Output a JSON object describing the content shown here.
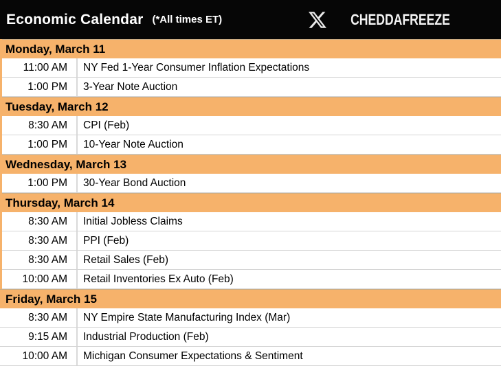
{
  "header": {
    "title": "Economic Calendar",
    "subtitle": "(*All times ET)",
    "brand": "CHEDDAFREEZE"
  },
  "icons": {
    "x_logo": "x-logo-icon"
  },
  "colors": {
    "accent_orange": "#f6b26b",
    "titlebar_black": "#060606",
    "row_border_gray": "#d9d9d9",
    "row_bg": "#ffffff",
    "text_black": "#000000",
    "title_text_white": "#ffffff"
  },
  "calendar": {
    "days": [
      {
        "label": "Monday, March 11",
        "events": [
          {
            "time": "11:00 AM",
            "event": "NY Fed 1-Year Consumer Inflation Expectations"
          },
          {
            "time": "1:00 PM",
            "event": "3-Year Note Auction"
          }
        ]
      },
      {
        "label": "Tuesday, March 12",
        "events": [
          {
            "time": "8:30 AM",
            "event": "CPI (Feb)"
          },
          {
            "time": "1:00 PM",
            "event": "10-Year Note Auction"
          }
        ]
      },
      {
        "label": "Wednesday, March 13",
        "events": [
          {
            "time": "1:00 PM",
            "event": "30-Year Bond Auction"
          }
        ]
      },
      {
        "label": "Thursday, March 14",
        "events": [
          {
            "time": "8:30 AM",
            "event": "Initial Jobless Claims"
          },
          {
            "time": "8:30 AM",
            "event": "PPI (Feb)"
          },
          {
            "time": "8:30 AM",
            "event": "Retail Sales (Feb)"
          },
          {
            "time": "10:00 AM",
            "event": "Retail Inventories Ex Auto (Feb)"
          }
        ]
      },
      {
        "label": "Friday, March 15",
        "events": [
          {
            "time": "8:30 AM",
            "event": "NY Empire State Manufacturing Index (Mar)"
          },
          {
            "time": "9:15 AM",
            "event": "Industrial Production (Feb)"
          },
          {
            "time": "10:00 AM",
            "event": "Michigan Consumer Expectations & Sentiment"
          }
        ]
      }
    ]
  }
}
